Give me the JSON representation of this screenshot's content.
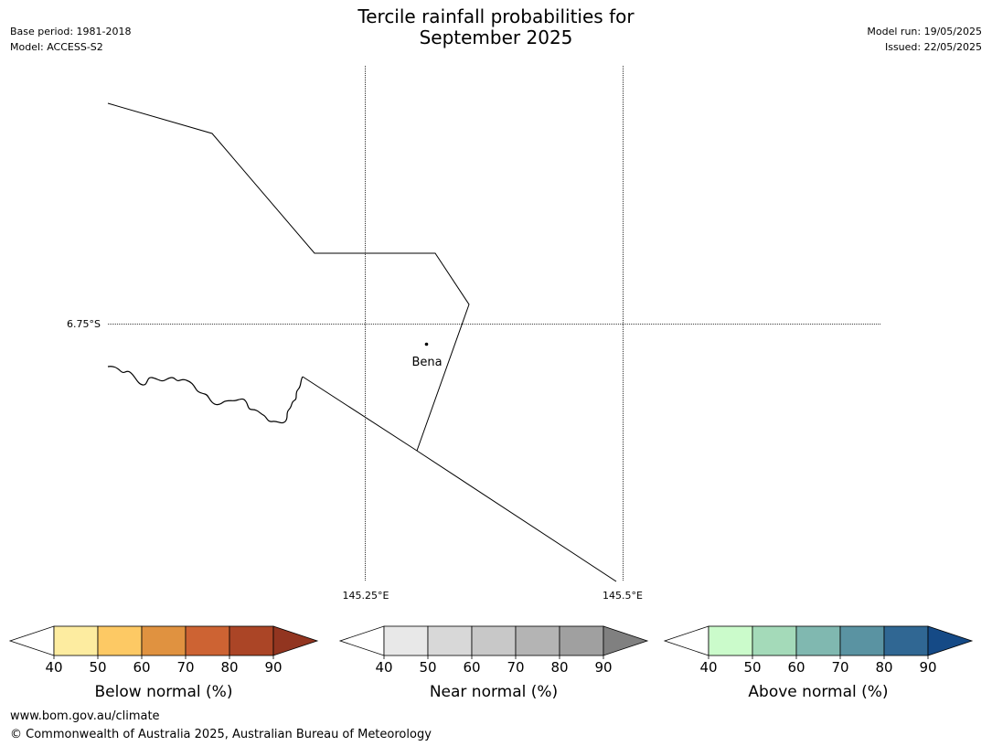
{
  "header": {
    "title_line1": "Tercile rainfall probabilities for",
    "title_line2": "September 2025",
    "base_period": "Base period: 1981-2018",
    "model": "Model: ACCESS-S2",
    "model_run": "Model run: 19/05/2025",
    "issued": "Issued: 22/05/2025"
  },
  "map": {
    "latitude_label": "6.75°S",
    "longitude_labels": [
      "145.25°E",
      "145.5°E"
    ],
    "place_name": "Bena"
  },
  "colorbars": [
    {
      "title": "Below normal (%)",
      "ticks": [
        "40",
        "50",
        "60",
        "70",
        "80",
        "90"
      ],
      "colors": [
        "#ffffff",
        "#fdeca0",
        "#fdc964",
        "#e09240",
        "#cd6333",
        "#ab4526",
        "#923520"
      ]
    },
    {
      "title": "Near normal (%)",
      "ticks": [
        "40",
        "50",
        "60",
        "70",
        "80",
        "90"
      ],
      "colors": [
        "#ffffff",
        "#e8e8e8",
        "#d8d8d8",
        "#c8c8c8",
        "#b4b4b4",
        "#a0a0a0",
        "#808080"
      ]
    },
    {
      "title": "Above normal (%)",
      "ticks": [
        "40",
        "50",
        "60",
        "70",
        "80",
        "90"
      ],
      "colors": [
        "#ffffff",
        "#cbfbcb",
        "#a4dab9",
        "#80b8b0",
        "#5a93a2",
        "#306793",
        "#154a86"
      ]
    }
  ],
  "footer": {
    "url": "www.bom.gov.au/climate",
    "copyright": "© Commonwealth of Australia 2025, Australian Bureau of Meteorology"
  }
}
